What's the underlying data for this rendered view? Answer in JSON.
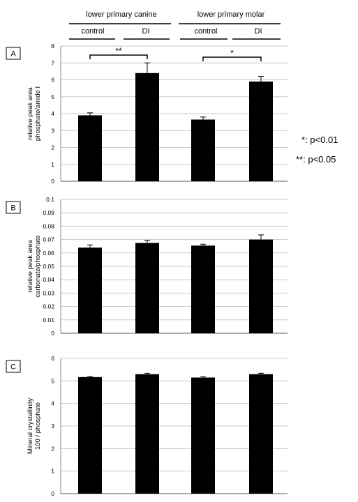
{
  "header": {
    "groups": [
      "lower  primary canine",
      "lower  primary molar"
    ],
    "subgroups": [
      "control",
      "DI",
      "control",
      "DI"
    ]
  },
  "significance_notes": [
    "*: p<0.01",
    "**: p<0.05"
  ],
  "chart_data": [
    {
      "type": "bar",
      "panel": "A",
      "categories": [
        "control",
        "DI",
        "control",
        "DI"
      ],
      "values": [
        3.9,
        6.4,
        3.65,
        5.9
      ],
      "errors": [
        0.15,
        0.6,
        0.15,
        0.3
      ],
      "ylabel": [
        "relative peak area",
        "phosphate/amide I"
      ],
      "ylim": [
        0,
        8
      ],
      "yticks": [
        "0",
        "1",
        "2",
        "3",
        "4",
        "5",
        "6",
        "7",
        "8"
      ],
      "grid": true,
      "annotations": [
        {
          "pair": [
            0,
            1
          ],
          "label": "**"
        },
        {
          "pair": [
            2,
            3
          ],
          "label": "*"
        }
      ]
    },
    {
      "type": "bar",
      "panel": "B",
      "categories": [
        "control",
        "DI",
        "control",
        "DI"
      ],
      "values": [
        0.064,
        0.0675,
        0.0655,
        0.07
      ],
      "errors": [
        0.002,
        0.002,
        0.001,
        0.0035
      ],
      "ylabel": [
        "relative peak area",
        "carbonate/phosphate"
      ],
      "ylim": [
        0,
        0.1
      ],
      "yticks": [
        "0",
        "0.01",
        "0.02",
        "0.03",
        "0.04",
        "0.05",
        "0.06",
        "0.07",
        "0.08",
        "0.09",
        "0.1"
      ],
      "grid": true,
      "annotations": []
    },
    {
      "type": "bar",
      "panel": "C",
      "categories": [
        "control",
        "DI",
        "control",
        "DI"
      ],
      "values": [
        5.17,
        5.3,
        5.15,
        5.3
      ],
      "errors": [
        0.03,
        0.04,
        0.03,
        0.04
      ],
      "ylabel": [
        "Mineral crystallinity",
        "100 / phosphate"
      ],
      "ylim": [
        0,
        6
      ],
      "yticks": [
        "0",
        "1",
        "2",
        "3",
        "4",
        "5",
        "6"
      ],
      "grid": true,
      "annotations": []
    }
  ]
}
